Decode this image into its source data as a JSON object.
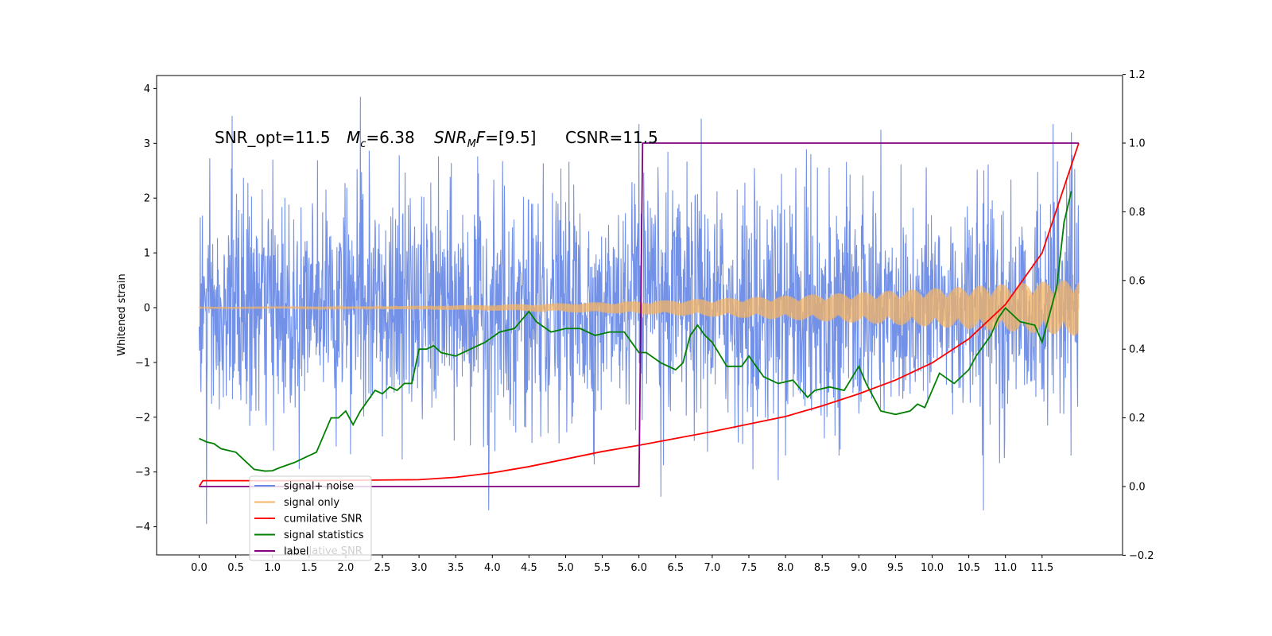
{
  "chart_data": {
    "type": "line",
    "title": "",
    "xlabel": "",
    "ylabel": "Whitened strain",
    "y2label": "",
    "xlim": [
      -0.6,
      12.6
    ],
    "ylim": [
      -4.5,
      4.25
    ],
    "y2lim": [
      -0.2,
      1.2
    ],
    "grid": false,
    "legend_position": "lower-left",
    "x_ticks": [
      "0.0",
      "0.5",
      "1.0",
      "1.5",
      "2.0",
      "2.5",
      "3.0",
      "3.5",
      "4.0",
      "4.5",
      "5.0",
      "5.5",
      "6.0",
      "6.5",
      "7.0",
      "7.5",
      "8.0",
      "8.5",
      "9.0",
      "9.5",
      "10.0",
      "10.5",
      "11.0",
      "11.5"
    ],
    "y_ticks": [
      "4",
      "3",
      "2",
      "1",
      "0",
      "−1",
      "−2",
      "−3",
      "−4"
    ],
    "y2_ticks": [
      "1.2",
      "1.0",
      "0.8",
      "0.6",
      "0.4",
      "0.2",
      "0.0",
      "−0.2"
    ],
    "annotations": {
      "snr_opt": "SNR_opt=11.5",
      "mc_symbol": "M",
      "mc_sub": "c",
      "mc_value": "=6.38",
      "snr_mf_symbol": "SNR",
      "snr_mf_sub": "M",
      "snr_mf_tail": "F",
      "snr_mf_value": "=[9.5]",
      "csnr": "CSNR=11.5"
    },
    "series": [
      {
        "name": "signal+ noise",
        "color": "#6c8be6",
        "axis": "left",
        "kind": "noise",
        "x_range": [
          0.0,
          12.0
        ],
        "typical_range": [
          -2.2,
          2.3
        ],
        "extremes": [
          [
            0.1,
            -3.95
          ],
          [
            0.45,
            3.5
          ],
          [
            2.2,
            3.85
          ],
          [
            3.95,
            -3.7
          ],
          [
            6.0,
            3.35
          ],
          [
            6.85,
            3.45
          ],
          [
            9.3,
            3.25
          ],
          [
            10.7,
            -3.7
          ],
          [
            11.65,
            3.35
          ],
          [
            11.9,
            3.2
          ],
          [
            6.3,
            -3.45
          ],
          [
            7.9,
            -3.15
          ]
        ]
      },
      {
        "name": "signal only",
        "color": "#f5b461",
        "axis": "left",
        "kind": "chirp",
        "x_range": [
          0.0,
          12.0
        ],
        "amplitude_start": 0.01,
        "amplitude_end": 0.52
      },
      {
        "name": "cumilative SNR",
        "color": "#ff0000",
        "axis": "right",
        "x": [
          0.0,
          0.05,
          1.0,
          2.0,
          3.0,
          3.5,
          4.0,
          4.5,
          5.0,
          5.5,
          6.0,
          6.5,
          7.0,
          7.5,
          8.0,
          8.5,
          9.0,
          9.5,
          10.0,
          10.5,
          11.0,
          11.5,
          12.0
        ],
        "y": [
          0.0,
          0.017,
          0.017,
          0.018,
          0.02,
          0.027,
          0.04,
          0.058,
          0.08,
          0.102,
          0.12,
          0.14,
          0.16,
          0.182,
          0.204,
          0.235,
          0.27,
          0.31,
          0.36,
          0.43,
          0.53,
          0.68,
          1.0
        ]
      },
      {
        "name": "signal statistics",
        "color": "#008000",
        "axis": "right",
        "x": [
          0.0,
          0.1,
          0.2,
          0.3,
          0.5,
          0.6,
          0.75,
          0.9,
          1.0,
          1.1,
          1.3,
          1.5,
          1.6,
          1.7,
          1.8,
          1.9,
          2.0,
          2.1,
          2.2,
          2.3,
          2.4,
          2.5,
          2.6,
          2.7,
          2.8,
          2.9,
          3.0,
          3.1,
          3.2,
          3.3,
          3.5,
          3.7,
          3.9,
          4.1,
          4.3,
          4.5,
          4.6,
          4.8,
          5.0,
          5.2,
          5.4,
          5.6,
          5.8,
          5.9,
          6.0,
          6.1,
          6.3,
          6.5,
          6.6,
          6.7,
          6.8,
          6.9,
          7.0,
          7.2,
          7.4,
          7.5,
          7.7,
          7.9,
          8.1,
          8.3,
          8.4,
          8.6,
          8.8,
          9.0,
          9.1,
          9.3,
          9.5,
          9.7,
          9.8,
          9.9,
          10.1,
          10.3,
          10.5,
          10.6,
          10.8,
          10.9,
          11.0,
          11.2,
          11.4,
          11.5,
          11.7,
          11.8,
          11.9
        ],
        "y": [
          0.14,
          0.13,
          0.125,
          0.11,
          0.1,
          0.08,
          0.05,
          0.045,
          0.046,
          0.055,
          0.07,
          0.09,
          0.1,
          0.15,
          0.2,
          0.2,
          0.22,
          0.18,
          0.22,
          0.25,
          0.28,
          0.27,
          0.29,
          0.28,
          0.3,
          0.3,
          0.4,
          0.4,
          0.41,
          0.39,
          0.38,
          0.4,
          0.42,
          0.45,
          0.46,
          0.51,
          0.48,
          0.45,
          0.46,
          0.46,
          0.44,
          0.45,
          0.45,
          0.42,
          0.39,
          0.39,
          0.36,
          0.34,
          0.36,
          0.44,
          0.47,
          0.44,
          0.42,
          0.35,
          0.35,
          0.38,
          0.32,
          0.3,
          0.31,
          0.26,
          0.28,
          0.29,
          0.28,
          0.35,
          0.3,
          0.22,
          0.21,
          0.22,
          0.24,
          0.23,
          0.33,
          0.3,
          0.34,
          0.38,
          0.44,
          0.49,
          0.52,
          0.48,
          0.47,
          0.42,
          0.58,
          0.77,
          0.86
        ]
      },
      {
        "name": "label",
        "color": "#800080",
        "axis": "right",
        "x": [
          0.0,
          6.0,
          6.0,
          6.05,
          12.0
        ],
        "y": [
          0.0,
          0.0,
          0.0,
          1.0,
          1.0
        ]
      }
    ],
    "legend": {
      "entries": [
        "signal+ noise",
        "signal only",
        "cumilative SNR",
        "signal statistics",
        "label"
      ],
      "ghost_text": "cumilative SNR"
    }
  }
}
